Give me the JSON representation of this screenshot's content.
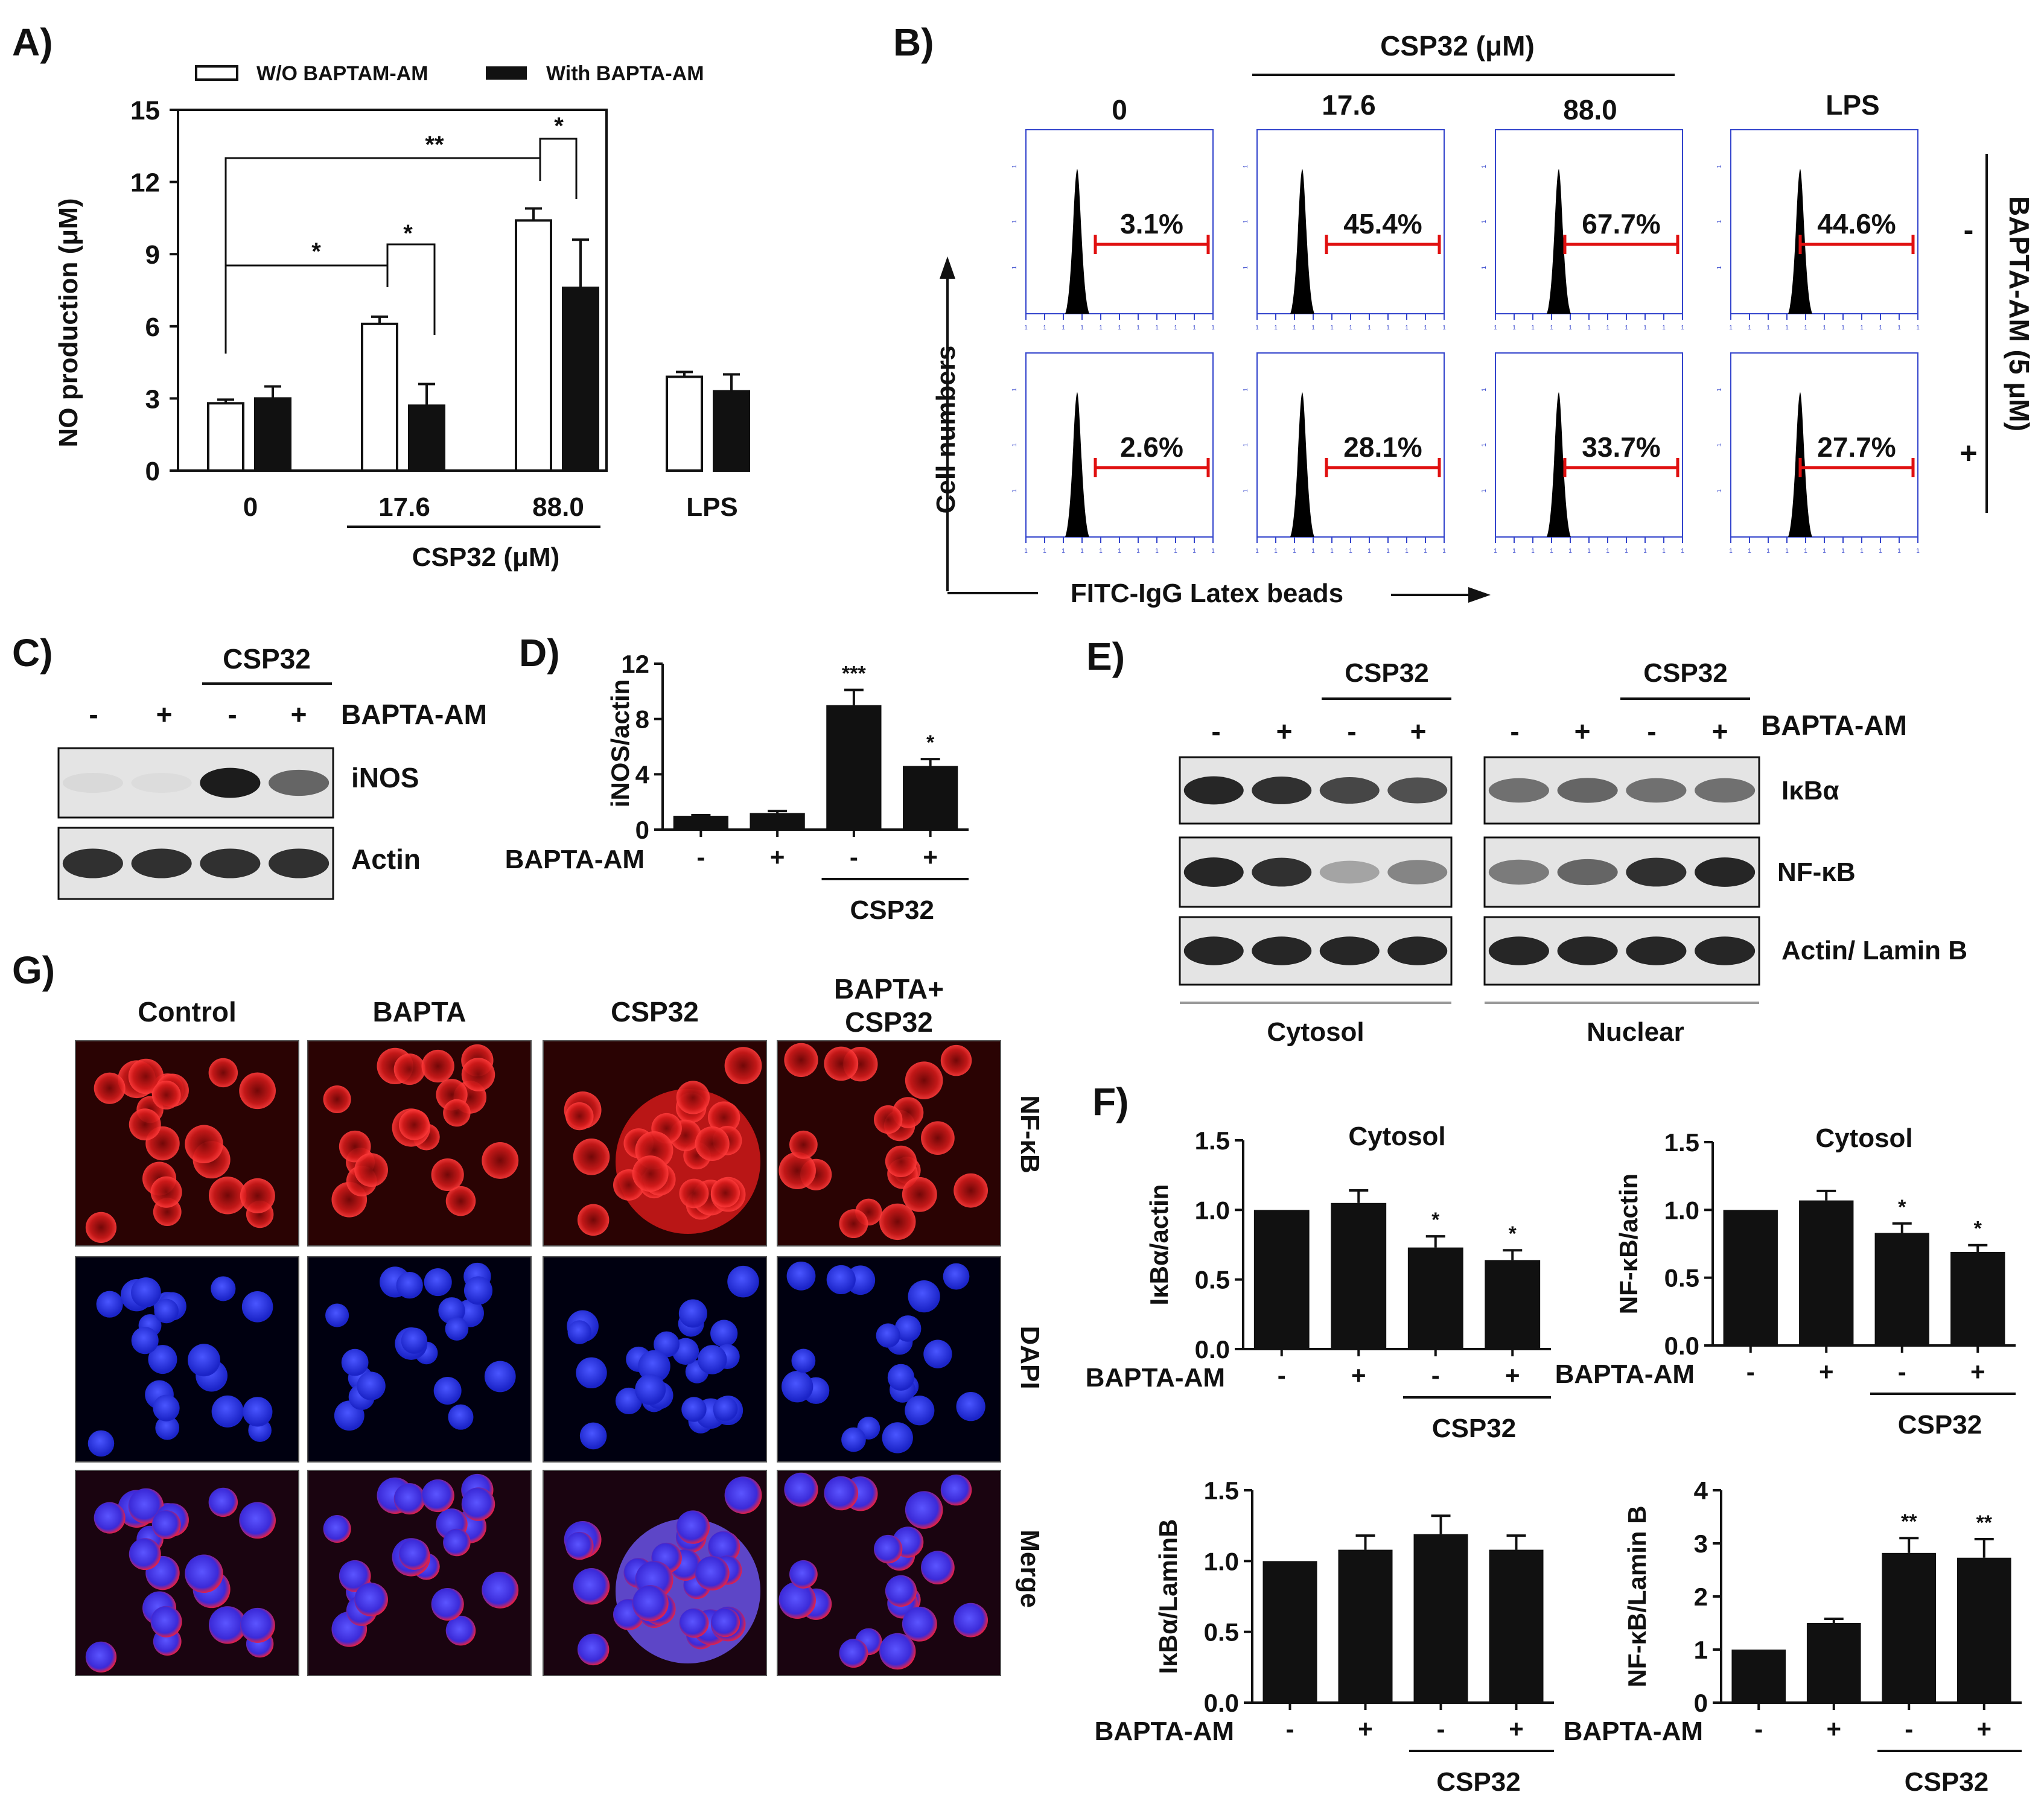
{
  "panels": {
    "A": {
      "letter": "A)"
    },
    "B": {
      "letter": "B)"
    },
    "C": {
      "letter": "C)"
    },
    "D": {
      "letter": "D)"
    },
    "E": {
      "letter": "E)"
    },
    "F": {
      "letter": "F)"
    },
    "G": {
      "letter": "G)"
    }
  },
  "treatment": {
    "name": "CSP32",
    "name_um": "CSP32 (μM)",
    "bapta": "BAPTA-AM",
    "bapta_dose": "BAPTA-AM (5 μM)",
    "minus": "-",
    "plus": "+"
  },
  "signs": [
    "-",
    "+",
    "-",
    "+"
  ],
  "chart_data": [
    {
      "type": "bar",
      "panel": "A",
      "ylabel": "NO production (μM)",
      "xlabel": "CSP32 (μM)",
      "categories": [
        "0",
        "17.6",
        "88.0",
        "LPS"
      ],
      "ylim": [
        0,
        15
      ],
      "yticks": [
        0,
        3,
        6,
        9,
        12,
        15
      ],
      "series": [
        {
          "name": "W/O BAPTAM-AM",
          "values": [
            2.8,
            6.1,
            10.4,
            3.9
          ],
          "errors": [
            0.15,
            0.3,
            0.5,
            0.2
          ]
        },
        {
          "name": "With BAPTA-AM",
          "values": [
            3.0,
            2.7,
            7.6,
            3.3
          ],
          "errors": [
            0.5,
            0.9,
            2.0,
            0.7
          ]
        }
      ],
      "significance": [
        "*",
        "*",
        "**",
        "*"
      ]
    },
    {
      "type": "bar",
      "panel": "D",
      "ylabel": "iNOS/actin",
      "ylim": [
        0,
        12
      ],
      "yticks": [
        0,
        4,
        8,
        12
      ],
      "values": [
        1.0,
        1.2,
        9.0,
        4.6
      ],
      "errors": [
        0.05,
        0.15,
        1.1,
        0.5
      ],
      "stars": [
        "",
        "",
        "***",
        "*"
      ]
    },
    {
      "type": "bar",
      "panel": "F",
      "title": "Cytosol",
      "ylabel": "IκBα/actin",
      "ylim": [
        0,
        1.5
      ],
      "yticks": [
        "0.0",
        "0.5",
        "1.0",
        "1.5"
      ],
      "values": [
        1.0,
        1.05,
        0.73,
        0.64
      ],
      "errors": [
        0,
        0.09,
        0.08,
        0.07
      ],
      "stars": [
        "",
        "",
        "*",
        "*"
      ]
    },
    {
      "type": "bar",
      "panel": "F",
      "title": "Cytosol",
      "ylabel": "NF-κB/actin",
      "ylim": [
        0,
        1.5
      ],
      "yticks": [
        "0.0",
        "0.5",
        "1.0",
        "1.5"
      ],
      "values": [
        1.0,
        1.07,
        0.83,
        0.69
      ],
      "errors": [
        0,
        0.07,
        0.07,
        0.05
      ],
      "stars": [
        "",
        "",
        "*",
        "*"
      ]
    },
    {
      "type": "bar",
      "panel": "F",
      "ylabel": "IκBα/LaminB",
      "ylim": [
        0,
        1.5
      ],
      "yticks": [
        "0.0",
        "0.5",
        "1.0",
        "1.5"
      ],
      "values": [
        1.0,
        1.08,
        1.19,
        1.08
      ],
      "errors": [
        0,
        0.1,
        0.13,
        0.1
      ],
      "stars": [
        "",
        "",
        "",
        ""
      ]
    },
    {
      "type": "bar",
      "panel": "F",
      "ylabel": "NF-κB/Lamin B",
      "ylim": [
        0,
        4
      ],
      "yticks": [
        "0",
        "1",
        "2",
        "3",
        "4"
      ],
      "values": [
        1.0,
        1.5,
        2.82,
        2.73
      ],
      "errors": [
        0,
        0.08,
        0.28,
        0.35
      ],
      "stars": [
        "",
        "",
        "**",
        "**"
      ]
    }
  ],
  "flow": {
    "columns": [
      "0",
      "17.6",
      "88.0",
      "LPS"
    ],
    "rows": [
      {
        "sign": "-",
        "pcts": [
          "3.1%",
          "45.4%",
          "67.7%",
          "44.6%"
        ]
      },
      {
        "sign": "+",
        "pcts": [
          "2.6%",
          "28.1%",
          "33.7%",
          "27.7%"
        ]
      }
    ],
    "y_axis": "Cell numbers",
    "x_axis": "FITC-IgG Latex beads"
  },
  "blots": {
    "C": {
      "rows": [
        "iNOS",
        "Actin"
      ]
    },
    "E": {
      "rows": [
        "IκBα",
        "NF-κB",
        "Actin/ Lamin B"
      ],
      "sections": [
        "Cytosol",
        "Nuclear"
      ]
    }
  },
  "microscopy": {
    "columns": [
      "Control",
      "BAPTA",
      "CSP32"
    ],
    "column4": [
      "BAPTA+",
      "CSP32"
    ],
    "rows": [
      "NF-κB",
      "DAPI",
      "Merge"
    ]
  }
}
